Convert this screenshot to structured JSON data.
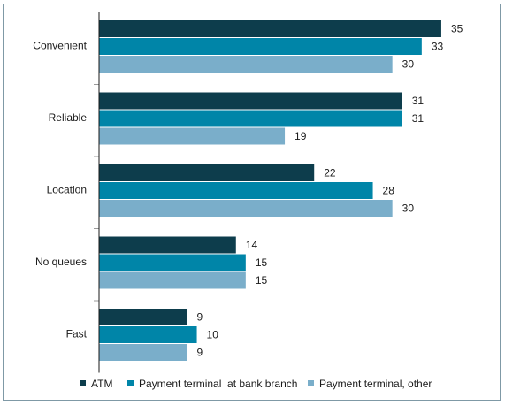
{
  "chart_data": {
    "type": "bar",
    "orientation": "horizontal",
    "categories": [
      "Convenient",
      "Reliable",
      "Location",
      "No queues",
      "Fast"
    ],
    "series": [
      {
        "name": "ATM",
        "values": [
          35,
          31,
          22,
          14,
          9
        ],
        "color": "#0d3d4c"
      },
      {
        "name": "Payment terminal  at bank branch",
        "values": [
          33,
          31,
          28,
          15,
          10
        ],
        "color": "#0085a8"
      },
      {
        "name": "Payment terminal, other",
        "values": [
          30,
          19,
          30,
          15,
          9
        ],
        "color": "#7aaeca"
      }
    ],
    "xlim": [
      0,
      36
    ],
    "grid": false,
    "legend_position": "bottom",
    "title": "",
    "xlabel": "",
    "ylabel": ""
  },
  "colors": {
    "frame_border": "#7f99a6",
    "axis": "#1a1a1a",
    "separator": "#999999"
  }
}
